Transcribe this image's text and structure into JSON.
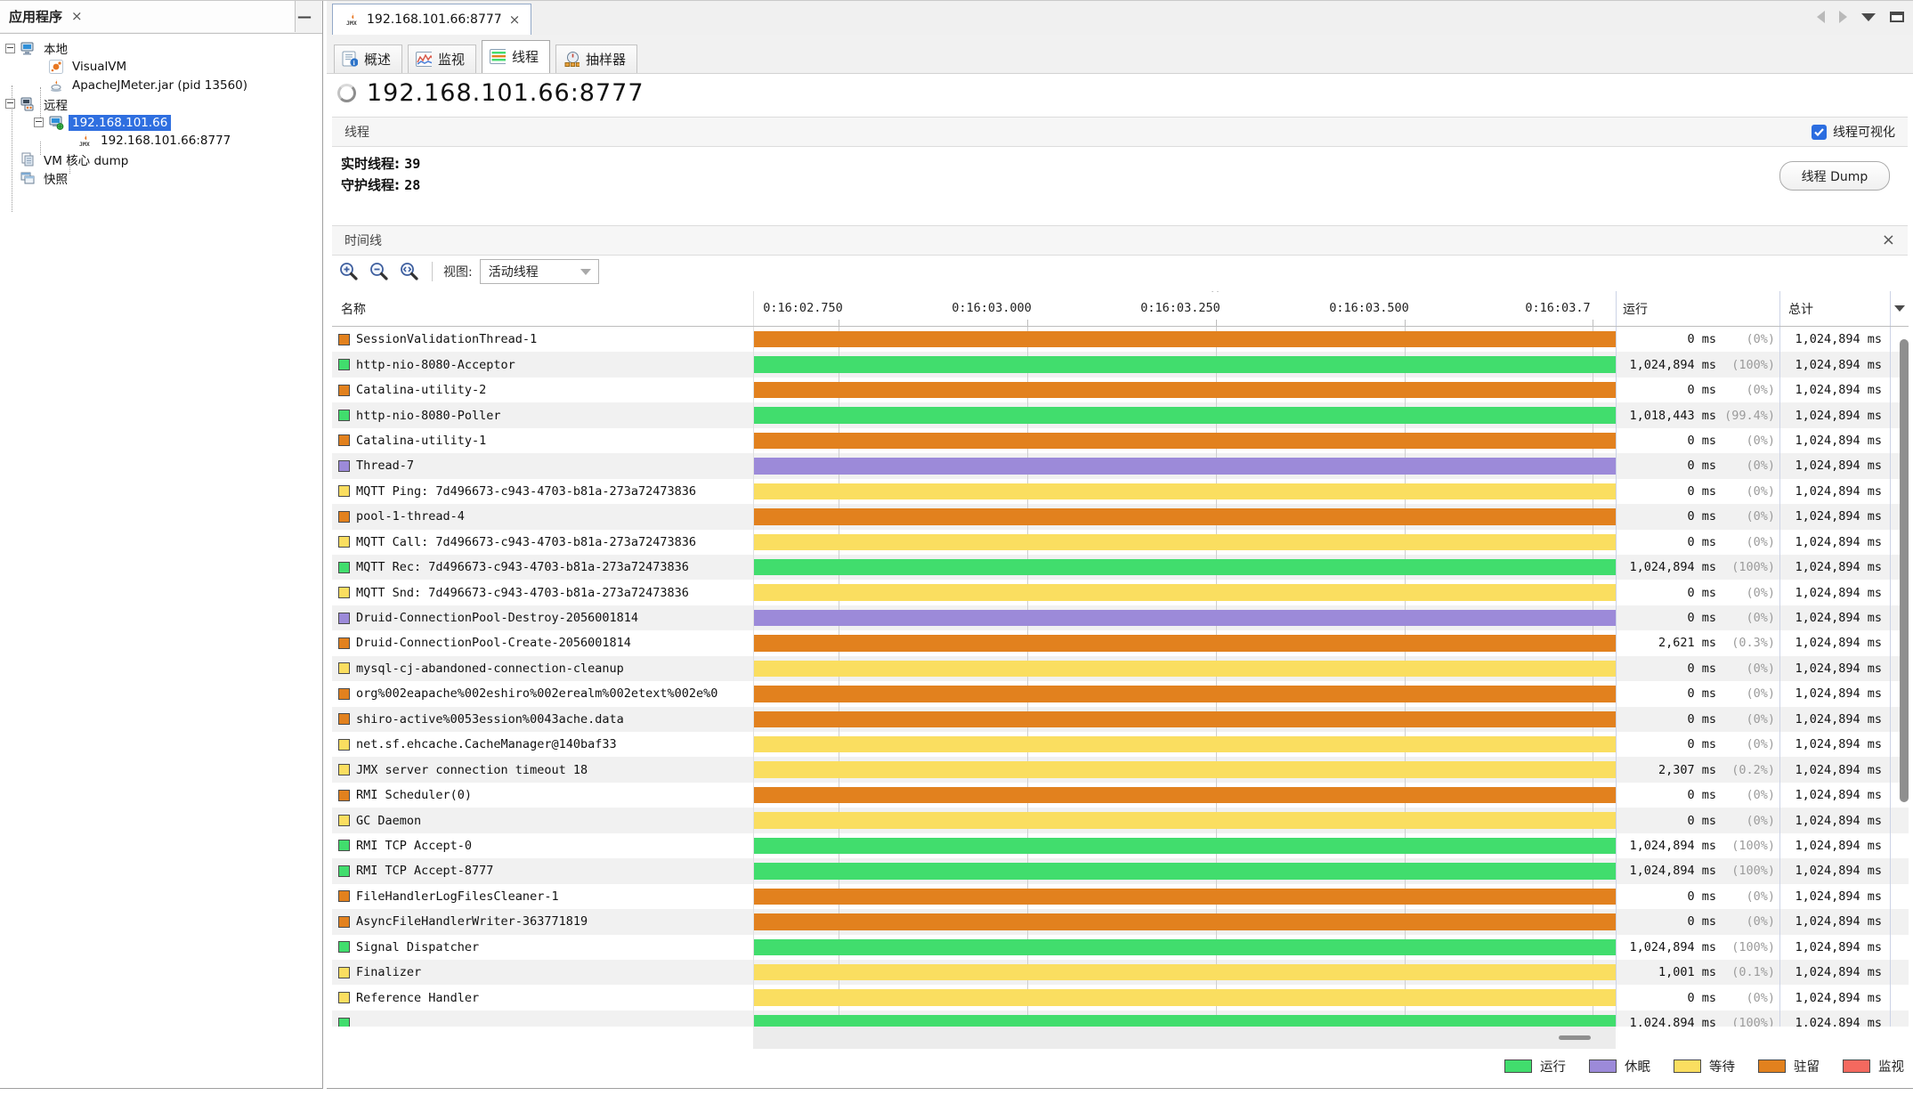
{
  "icons": {
    "close": "×",
    "minimize": "—",
    "caret": "^"
  },
  "colors": {
    "running": "#41dd6d",
    "sleeping": "#9c8ad9",
    "waiting": "#fade60",
    "park": "#e2811e",
    "monitor": "#f4695f",
    "selection": "#2f6fe0",
    "checkbox": "#2b6de0"
  },
  "sidebar": {
    "title": "应用程序",
    "tree": [
      {
        "label": "本地",
        "level": 0,
        "icon": "computer-icon",
        "expander": true
      },
      {
        "label": "VisualVM",
        "level": 1,
        "icon": "visualvm-icon"
      },
      {
        "label": "ApacheJMeter.jar (pid 13560)",
        "level": 1,
        "icon": "java-icon"
      },
      {
        "label": "远程",
        "level": 0,
        "icon": "remote-icon",
        "expander": true
      },
      {
        "label": "192.168.101.66",
        "level": 1,
        "icon": "host-icon",
        "expander": true,
        "selected": true
      },
      {
        "label": "192.168.101.66:8777",
        "level": 2,
        "icon": "jmx-icon"
      },
      {
        "label": "VM 核心 dump",
        "level": 0,
        "icon": "coredump-icon"
      },
      {
        "label": "快照",
        "level": 0,
        "icon": "snapshot-icon"
      }
    ]
  },
  "main": {
    "doc_tab": "192.168.101.66:8777",
    "view_tabs": [
      {
        "label": "概述",
        "icon": "overview-icon",
        "selected": false
      },
      {
        "label": "监视",
        "icon": "monitor-icon",
        "selected": false
      },
      {
        "label": "线程",
        "icon": "threads-icon",
        "selected": true
      },
      {
        "label": "抽样器",
        "icon": "sampler-icon",
        "selected": false
      }
    ],
    "heading": "192.168.101.66:8777"
  },
  "threads": {
    "title": "线程",
    "visualization_label": "线程可视化",
    "visualization_checked": true,
    "live_label": "实时线程:",
    "live_value": "39",
    "daemon_label": "守护线程:",
    "daemon_value": "28",
    "dump_button": "线程 Dump"
  },
  "timeline": {
    "title": "时间线",
    "view_label": "视图:",
    "view_value": "活动线程",
    "columns": {
      "name": "名称",
      "running": "运行",
      "total": "总计"
    },
    "ticks": [
      "0:16:02.750",
      "0:16:03.000",
      "0:16:03.250",
      "0:16:03.500",
      "0:16:03.7"
    ],
    "rows": [
      {
        "name": "SessionValidationThread-1",
        "state": "park",
        "running": "0 ms",
        "pct": "(0%)",
        "total": "1,024,894 ms"
      },
      {
        "name": "http-nio-8080-Acceptor",
        "state": "running",
        "running": "1,024,894 ms",
        "pct": "(100%)",
        "total": "1,024,894 ms"
      },
      {
        "name": "Catalina-utility-2",
        "state": "park",
        "running": "0 ms",
        "pct": "(0%)",
        "total": "1,024,894 ms"
      },
      {
        "name": "http-nio-8080-Poller",
        "state": "running",
        "running": "1,018,443 ms",
        "pct": "(99.4%)",
        "total": "1,024,894 ms"
      },
      {
        "name": "Catalina-utility-1",
        "state": "park",
        "running": "0 ms",
        "pct": "(0%)",
        "total": "1,024,894 ms"
      },
      {
        "name": "Thread-7",
        "state": "sleeping",
        "running": "0 ms",
        "pct": "(0%)",
        "total": "1,024,894 ms"
      },
      {
        "name": "MQTT Ping: 7d496673-c943-4703-b81a-273a72473836",
        "state": "waiting",
        "running": "0 ms",
        "pct": "(0%)",
        "total": "1,024,894 ms"
      },
      {
        "name": "pool-1-thread-4",
        "state": "park",
        "running": "0 ms",
        "pct": "(0%)",
        "total": "1,024,894 ms"
      },
      {
        "name": "MQTT Call: 7d496673-c943-4703-b81a-273a72473836",
        "state": "waiting",
        "running": "0 ms",
        "pct": "(0%)",
        "total": "1,024,894 ms"
      },
      {
        "name": "MQTT Rec: 7d496673-c943-4703-b81a-273a72473836",
        "state": "running",
        "running": "1,024,894 ms",
        "pct": "(100%)",
        "total": "1,024,894 ms"
      },
      {
        "name": "MQTT Snd: 7d496673-c943-4703-b81a-273a72473836",
        "state": "waiting",
        "running": "0 ms",
        "pct": "(0%)",
        "total": "1,024,894 ms"
      },
      {
        "name": "Druid-ConnectionPool-Destroy-2056001814",
        "state": "sleeping",
        "running": "0 ms",
        "pct": "(0%)",
        "total": "1,024,894 ms"
      },
      {
        "name": "Druid-ConnectionPool-Create-2056001814",
        "state": "park",
        "running": "2,621 ms",
        "pct": "(0.3%)",
        "total": "1,024,894 ms"
      },
      {
        "name": "mysql-cj-abandoned-connection-cleanup",
        "state": "waiting",
        "running": "0 ms",
        "pct": "(0%)",
        "total": "1,024,894 ms"
      },
      {
        "name": "org%002eapache%002eshiro%002erealm%002etext%002e%0",
        "state": "park",
        "running": "0 ms",
        "pct": "(0%)",
        "total": "1,024,894 ms"
      },
      {
        "name": "shiro-active%0053ession%0043ache.data",
        "state": "park",
        "running": "0 ms",
        "pct": "(0%)",
        "total": "1,024,894 ms"
      },
      {
        "name": "net.sf.ehcache.CacheManager@140baf33",
        "state": "waiting",
        "running": "0 ms",
        "pct": "(0%)",
        "total": "1,024,894 ms"
      },
      {
        "name": "JMX server connection timeout 18",
        "state": "waiting",
        "running": "2,307 ms",
        "pct": "(0.2%)",
        "total": "1,024,894 ms"
      },
      {
        "name": "RMI Scheduler(0)",
        "state": "park",
        "running": "0 ms",
        "pct": "(0%)",
        "total": "1,024,894 ms"
      },
      {
        "name": "GC Daemon",
        "state": "waiting",
        "running": "0 ms",
        "pct": "(0%)",
        "total": "1,024,894 ms"
      },
      {
        "name": "RMI TCP Accept-0",
        "state": "running",
        "running": "1,024,894 ms",
        "pct": "(100%)",
        "total": "1,024,894 ms"
      },
      {
        "name": "RMI TCP Accept-8777",
        "state": "running",
        "running": "1,024,894 ms",
        "pct": "(100%)",
        "total": "1,024,894 ms"
      },
      {
        "name": "FileHandlerLogFilesCleaner-1",
        "state": "park",
        "running": "0 ms",
        "pct": "(0%)",
        "total": "1,024,894 ms"
      },
      {
        "name": "AsyncFileHandlerWriter-363771819",
        "state": "park",
        "running": "0 ms",
        "pct": "(0%)",
        "total": "1,024,894 ms"
      },
      {
        "name": "Signal Dispatcher",
        "state": "running",
        "running": "1,024,894 ms",
        "pct": "(100%)",
        "total": "1,024,894 ms"
      },
      {
        "name": "Finalizer",
        "state": "waiting",
        "running": "1,001 ms",
        "pct": "(0.1%)",
        "total": "1,024,894 ms"
      },
      {
        "name": "Reference Handler",
        "state": "waiting",
        "running": "0 ms",
        "pct": "(0%)",
        "total": "1,024,894 ms"
      },
      {
        "name": "",
        "state": "running",
        "running": "1,024,894 ms",
        "pct": "(100%)",
        "total": "1,024,894 ms"
      }
    ],
    "legend": [
      {
        "label": "运行",
        "state": "running"
      },
      {
        "label": "休眠",
        "state": "sleeping"
      },
      {
        "label": "等待",
        "state": "waiting"
      },
      {
        "label": "驻留",
        "state": "park"
      },
      {
        "label": "监视",
        "state": "monitor"
      }
    ]
  }
}
